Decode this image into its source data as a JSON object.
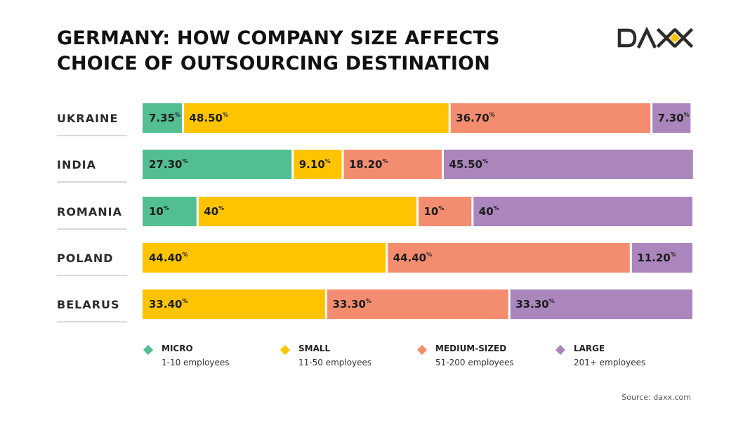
{
  "header": {
    "title_line1": "GERMANY: HOW COMPANY SIZE AFFECTS",
    "title_line2": "CHOICE OF OUTSOURCING DESTINATION",
    "logo_text": "DAXX",
    "logo_colors": {
      "dark": "#2b2b2b",
      "accent": "#ffc300"
    }
  },
  "chart_data": {
    "type": "bar",
    "orientation": "horizontal-stacked-100",
    "title": "GERMANY: HOW COMPANY SIZE AFFECTS CHOICE OF OUTSOURCING DESTINATION",
    "xlabel": "",
    "ylabel": "",
    "xlim": [
      0,
      100
    ],
    "grid": false,
    "legend_position": "bottom",
    "categories": [
      "UKRAINE",
      "INDIA",
      "ROMANIA",
      "POLAND",
      "BELARUS"
    ],
    "series": [
      {
        "name": "MICRO",
        "description": "1-10 employees",
        "color": "#52be92",
        "values": [
          7.35,
          27.3,
          10,
          null,
          null
        ],
        "labels": [
          "7.35",
          "27.30",
          "10",
          null,
          null
        ]
      },
      {
        "name": "SMALL",
        "description": "11-50 employees",
        "color": "#ffc400",
        "values": [
          48.5,
          9.1,
          40,
          44.4,
          33.4
        ],
        "labels": [
          "48.50",
          "9.10",
          "40",
          "44.40",
          "33.40"
        ]
      },
      {
        "name": "MEDIUM-SIZED",
        "description": "51-200 employees",
        "color": "#f48d6f",
        "values": [
          36.7,
          18.2,
          10,
          44.4,
          33.3
        ],
        "labels": [
          "36.70",
          "18.20",
          "10",
          "44.40",
          "33.30"
        ]
      },
      {
        "name": "LARGE",
        "description": "201+ employees",
        "color": "#aa86bd",
        "values": [
          7.3,
          45.5,
          40,
          11.2,
          33.3
        ],
        "labels": [
          "7.30",
          "45.50",
          "40",
          "11.20",
          "33.30"
        ]
      }
    ],
    "percent_sign": "%"
  },
  "legend": {
    "items": [
      {
        "name": "MICRO",
        "desc": "1-10 employees",
        "color": "#52be92"
      },
      {
        "name": "SMALL",
        "desc": "11-50 employees",
        "color": "#ffc400"
      },
      {
        "name": "MEDIUM-SIZED",
        "desc": "51-200 employees",
        "color": "#f48d6f"
      },
      {
        "name": "LARGE",
        "desc": "201+ employees",
        "color": "#aa86bd"
      }
    ]
  },
  "footer": {
    "source": "Source: daxx.com"
  }
}
